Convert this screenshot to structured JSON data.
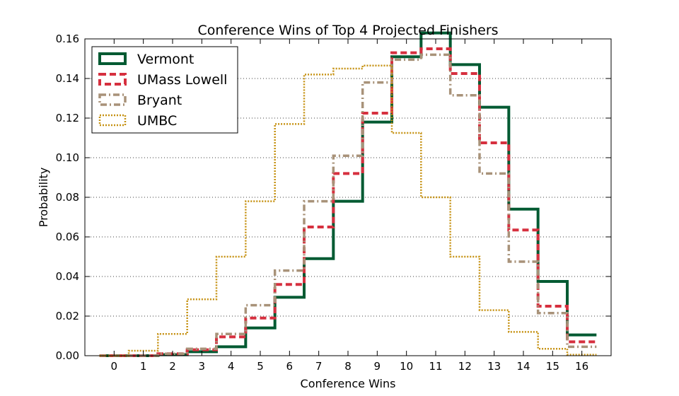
{
  "chart_data": {
    "type": "line",
    "title": "Conference Wins of Top 4 Projected Finishers",
    "xlabel": "Conference Wins",
    "ylabel": "Probability",
    "xlim": [
      -1,
      17
    ],
    "ylim": [
      0.0,
      0.16
    ],
    "x": [
      0,
      1,
      2,
      3,
      4,
      5,
      6,
      7,
      8,
      9,
      10,
      11,
      12,
      13,
      14,
      15,
      16
    ],
    "x_tick_labels": [
      "0",
      "1",
      "2",
      "3",
      "4",
      "5",
      "6",
      "7",
      "8",
      "9",
      "10",
      "11",
      "12",
      "13",
      "14",
      "15",
      "16"
    ],
    "y_ticks": [
      0.0,
      0.02,
      0.04,
      0.06,
      0.08,
      0.1,
      0.12,
      0.14,
      0.16
    ],
    "y_tick_labels": [
      "0.00",
      "0.02",
      "0.04",
      "0.06",
      "0.08",
      "0.10",
      "0.12",
      "0.14",
      "0.16"
    ],
    "grid": "y-dotted",
    "legend_position": "top-left",
    "series": [
      {
        "name": "Vermont",
        "color": "#005a32",
        "style": "solid",
        "values": [
          0.0,
          0.0,
          0.0005,
          0.002,
          0.0045,
          0.014,
          0.0295,
          0.049,
          0.078,
          0.118,
          0.151,
          0.163,
          0.147,
          0.1255,
          0.074,
          0.0375,
          0.0105
        ]
      },
      {
        "name": "UMass Lowell",
        "color": "#d6303f",
        "style": "dashed",
        "values": [
          0.0,
          0.0,
          0.001,
          0.003,
          0.0095,
          0.019,
          0.036,
          0.065,
          0.092,
          0.1225,
          0.153,
          0.155,
          0.1425,
          0.1075,
          0.0635,
          0.025,
          0.007
        ]
      },
      {
        "name": "Bryant",
        "color": "#a89279",
        "style": "dashdot",
        "values": [
          0.0,
          0.0,
          0.001,
          0.0035,
          0.011,
          0.0255,
          0.043,
          0.078,
          0.101,
          0.138,
          0.1495,
          0.152,
          0.1315,
          0.092,
          0.0475,
          0.0215,
          0.0045
        ]
      },
      {
        "name": "UMBC",
        "color": "#c69214",
        "style": "dotted",
        "values": [
          0.0,
          0.0025,
          0.011,
          0.0285,
          0.05,
          0.078,
          0.117,
          0.142,
          0.145,
          0.1465,
          0.1125,
          0.08,
          0.05,
          0.023,
          0.012,
          0.0035,
          0.0005
        ]
      }
    ]
  }
}
